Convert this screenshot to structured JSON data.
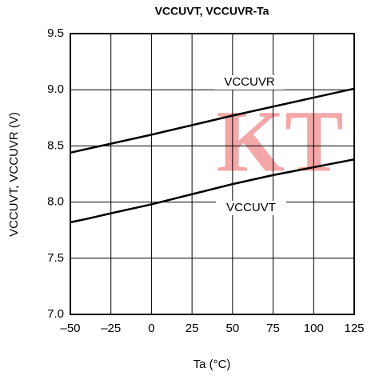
{
  "chart_data": {
    "type": "line",
    "title": "VCCUVT, VCCUVR-Ta",
    "x_label": "Ta (°C)",
    "y_label": "VCCUVT, VCCUVR (V)",
    "watermark": "KT",
    "series": [
      {
        "name": "VCCUVR",
        "color": "#000000",
        "x": [
          -50,
          0,
          50,
          125
        ],
        "values": [
          8.44,
          8.6,
          8.77,
          9.01
        ]
      },
      {
        "name": "VCCUVT",
        "color": "#000000",
        "x": [
          -50,
          -40,
          -25,
          0,
          25,
          50,
          75,
          100,
          125
        ],
        "values": [
          7.82,
          7.85,
          7.9,
          7.98,
          8.07,
          8.16,
          8.24,
          8.31,
          8.38
        ]
      }
    ],
    "xlim": [
      -50,
      125
    ],
    "xticks": [
      {
        "value": -50,
        "label": "–50"
      },
      {
        "value": -25,
        "label": "–25"
      },
      0,
      25,
      50,
      75,
      100,
      125
    ],
    "ylim": [
      7,
      9.5
    ],
    "yticks": [
      {
        "value": 7,
        "label": "7.0"
      },
      7.5,
      {
        "value": 8,
        "label": "8.0"
      },
      8.5,
      {
        "value": 9,
        "label": "9.0"
      },
      9.5
    ],
    "grid": true
  }
}
